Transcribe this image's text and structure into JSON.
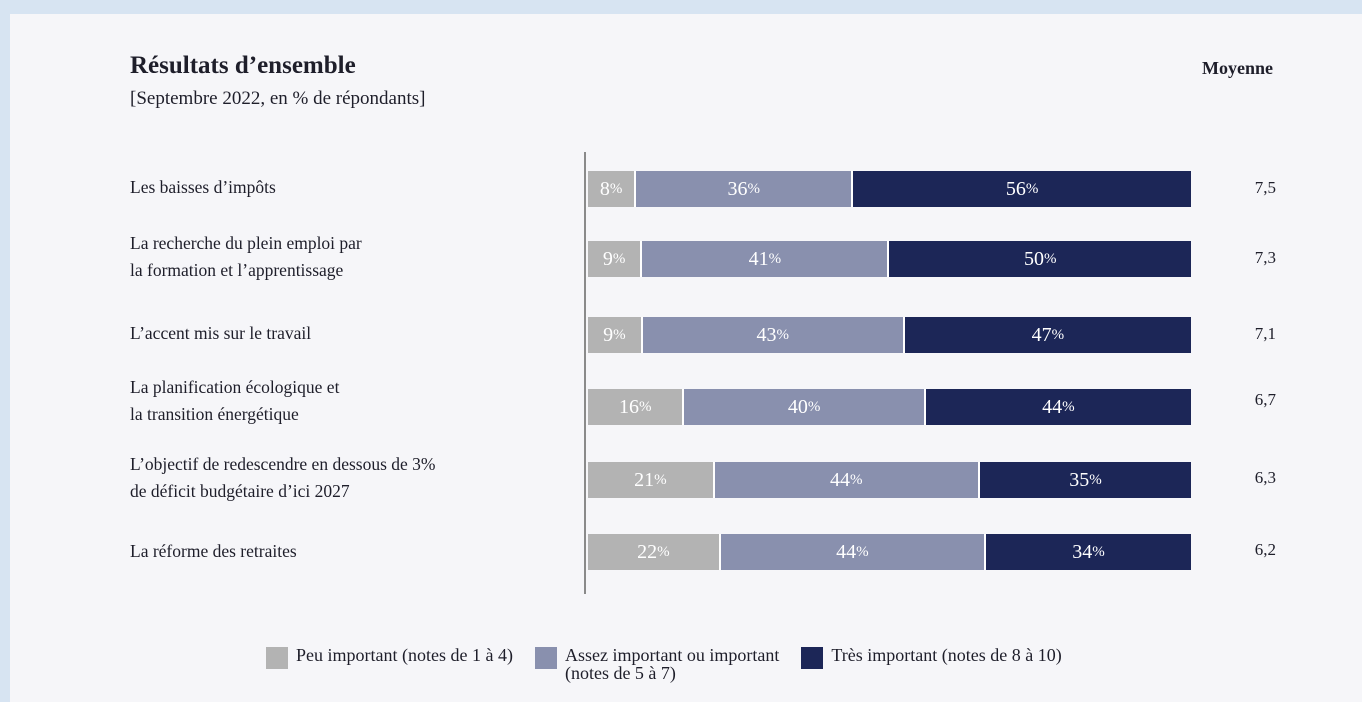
{
  "chart_data": {
    "type": "bar",
    "orientation": "horizontal-stacked-100",
    "title": "Résultats d’ensemble",
    "subtitle": "[Septembre 2022, en % de répondants]",
    "mean_header": "Moyenne",
    "categories": [
      "Les baisses d’impôts",
      "La recherche du plein emploi par\nla formation et l’apprentissage",
      "L’accent mis sur le travail",
      "La planification écologique et\nla transition énergétique",
      "L’objectif de redescendre en dessous de 3%\nde déficit budgétaire d’ici 2027",
      "La réforme des retraites"
    ],
    "series": [
      {
        "name": "Peu important (notes de 1 à 4)",
        "color": "#b3b3b3",
        "values": [
          8,
          9,
          9,
          16,
          21,
          22
        ]
      },
      {
        "name": "Assez important ou important\n(notes de 5 à 7)",
        "color": "#8990ae",
        "values": [
          36,
          41,
          43,
          40,
          44,
          44
        ]
      },
      {
        "name": "Très important (notes de 8 à 10)",
        "color": "#1c2657",
        "values": [
          56,
          50,
          47,
          44,
          35,
          34
        ]
      }
    ],
    "means": [
      "7,5",
      "7,3",
      "7,1",
      "6,7",
      "6,3",
      "6,2"
    ],
    "value_suffix": "%",
    "legend_position": "bottom"
  }
}
